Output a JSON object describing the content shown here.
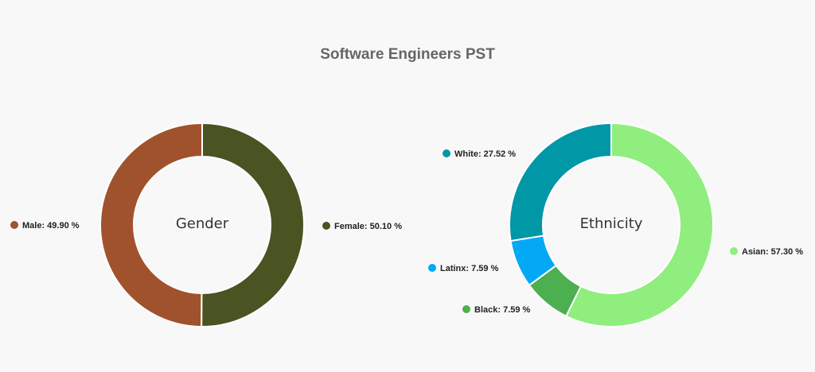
{
  "title": "Software Engineers PST",
  "chart_data": [
    {
      "type": "pie",
      "center_label": "Gender",
      "slices": [
        {
          "label": "Female",
          "value": 50.1,
          "display": "Female: 50.10 %",
          "color": "#4a5322"
        },
        {
          "label": "Male",
          "value": 49.9,
          "display": "Male: 49.90 %",
          "color": "#a0522d"
        }
      ]
    },
    {
      "type": "pie",
      "center_label": "Ethnicity",
      "slices": [
        {
          "label": "Asian",
          "value": 57.3,
          "display": "Asian: 57.30 %",
          "color": "#90ee7e"
        },
        {
          "label": "Black",
          "value": 7.59,
          "display": "Black: 7.59 %",
          "color": "#4caf50"
        },
        {
          "label": "Latinx",
          "value": 7.59,
          "display": "Latinx: 7.59 %",
          "color": "#03a9f4"
        },
        {
          "label": "White",
          "value": 27.52,
          "display": "White: 27.52 %",
          "color": "#0097a7"
        }
      ]
    }
  ]
}
